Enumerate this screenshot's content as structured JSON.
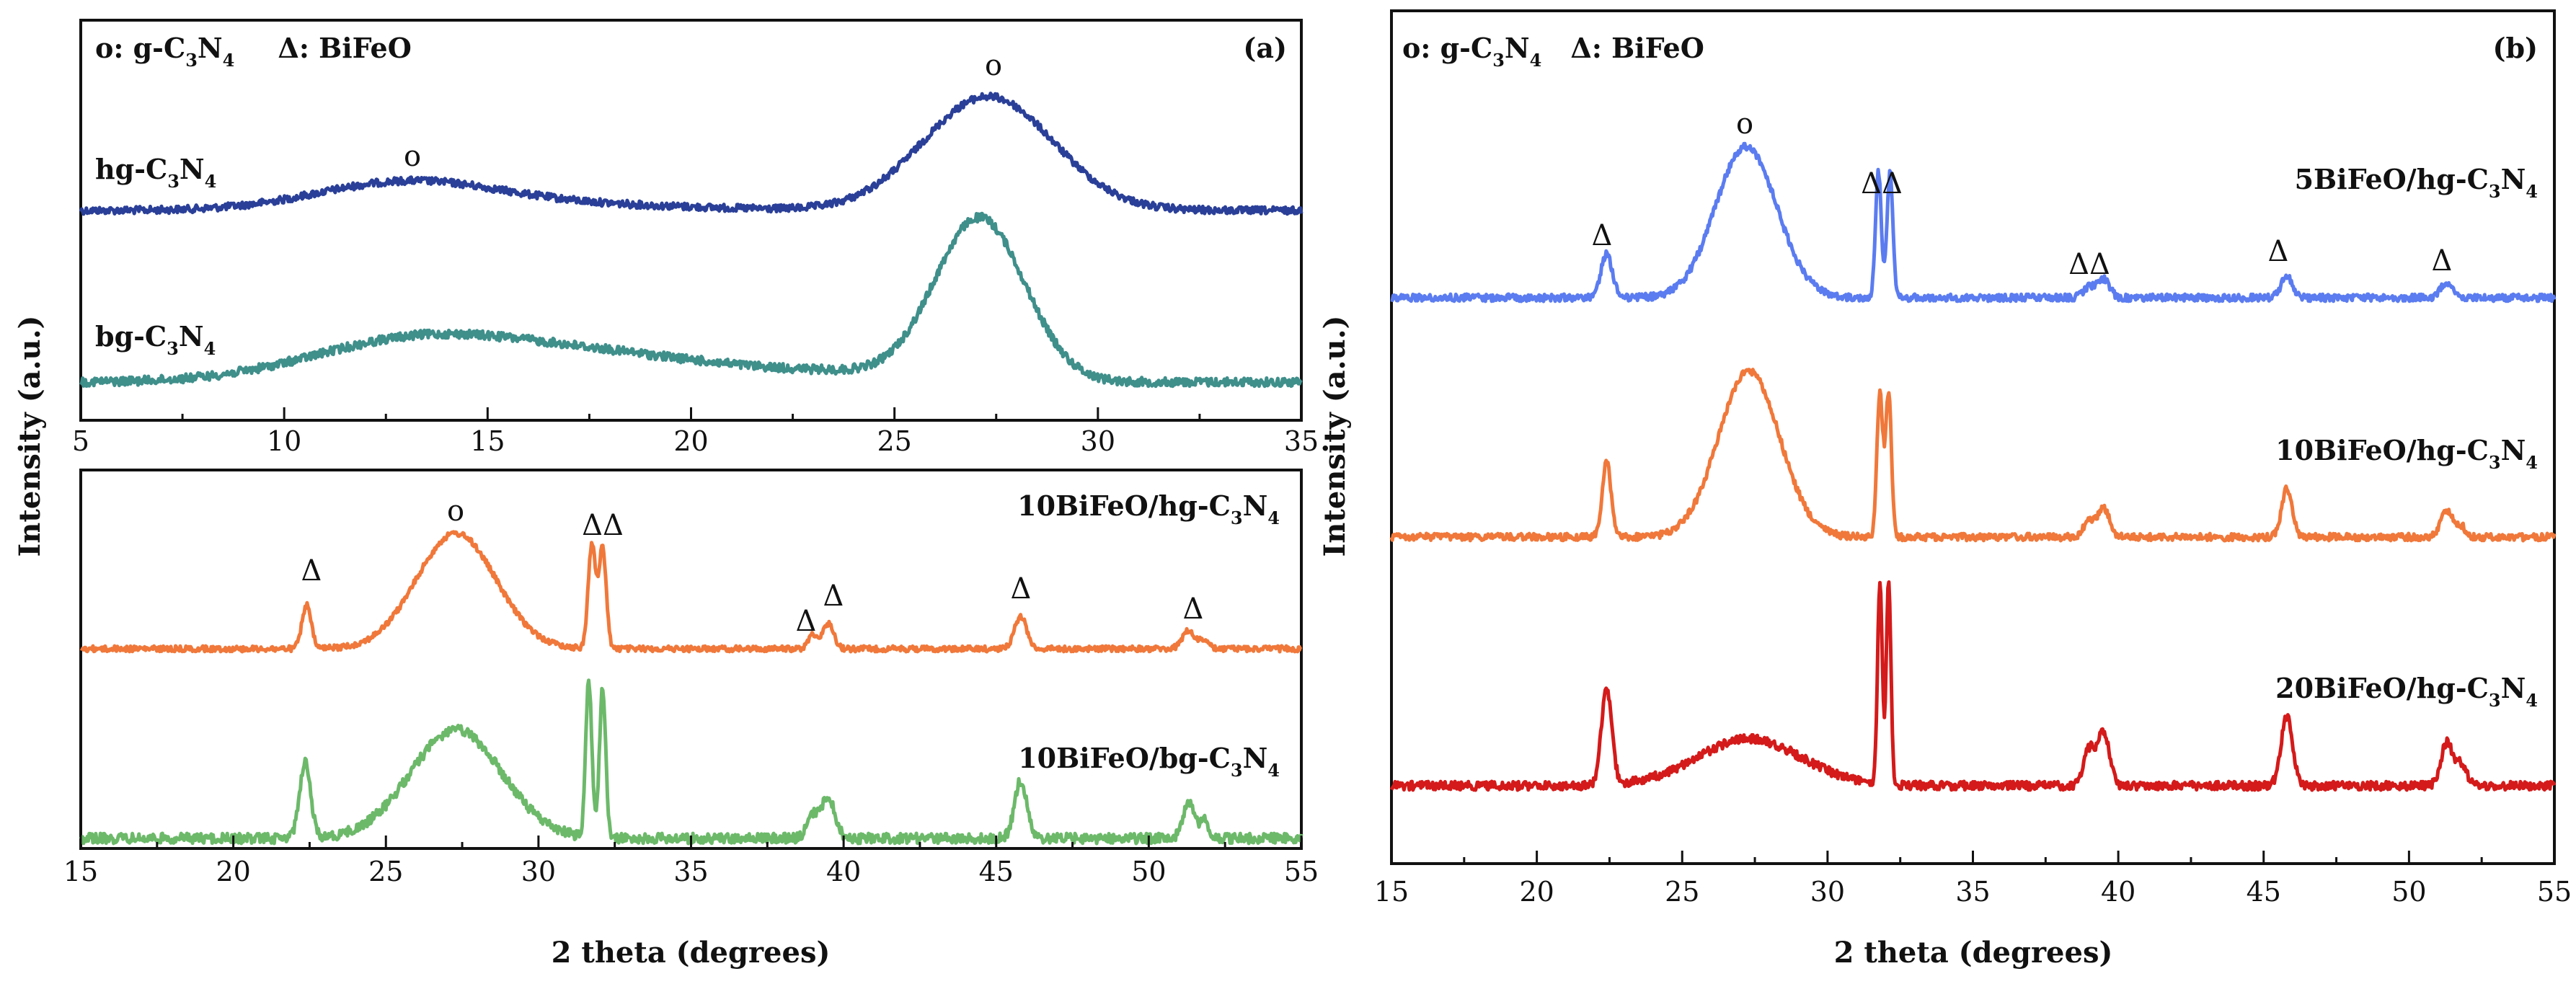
{
  "colors": {
    "navy": "#2a3f98",
    "teal": "#3f8f8b",
    "orange": "#f0783a",
    "green": "#6cb96a",
    "blue": "#5b7cf0",
    "red": "#d41a1a"
  },
  "chart_data": [
    {
      "id": "a-top",
      "panel": "(a)",
      "type": "line",
      "legend_text": {
        "o_part": "o: g-C",
        "c_sub": "3",
        "n_part": "N",
        "n_sub": "4",
        "delta_part": "Δ: BiFeO"
      },
      "xlim": [
        5,
        35
      ],
      "xticks": [
        5,
        10,
        15,
        20,
        25,
        30,
        35
      ],
      "ylabel": "Intensity (a.u.)",
      "series": [
        {
          "name": "hg-C3N4",
          "label": {
            "main": "hg-C",
            "s1": "3",
            "mid": "N",
            "s2": "4"
          },
          "color": "#2a3f98",
          "peaks": [
            {
              "x": 13.0,
              "marker": "o"
            },
            {
              "x": 27.3,
              "marker": "o"
            }
          ]
        },
        {
          "name": "bg-C3N4",
          "label": {
            "main": "bg-C",
            "s1": "3",
            "mid": "N",
            "s2": "4"
          },
          "color": "#3f8f8b",
          "peaks": [
            {
              "x": 13.0
            },
            {
              "x": 27.1
            }
          ]
        }
      ]
    },
    {
      "id": "a-bottom",
      "panel": "(a)",
      "type": "line",
      "xlim": [
        15,
        55
      ],
      "xticks": [
        15,
        20,
        25,
        30,
        35,
        40,
        45,
        50,
        55
      ],
      "xlabel": "2 theta (degrees)",
      "series": [
        {
          "name": "10BiFeO/hg-C3N4",
          "label": {
            "main": "10BiFeO/hg-C",
            "s1": "3",
            "mid": "N",
            "s2": "4"
          },
          "color": "#f0783a",
          "peaks": [
            {
              "x": 22.4,
              "marker": "Δ"
            },
            {
              "x": 27.3,
              "marker": "o"
            },
            {
              "x": 31.8,
              "marker": "ΔΔ"
            },
            {
              "x": 39.0,
              "marker": "Δ"
            },
            {
              "x": 39.5,
              "marker": "Δ"
            },
            {
              "x": 45.8,
              "marker": "Δ"
            },
            {
              "x": 51.3,
              "marker": "Δ"
            }
          ]
        },
        {
          "name": "10BiFeO/bg-C3N4",
          "label": {
            "main": "10BiFeO/bg-C",
            "s1": "3",
            "mid": "N",
            "s2": "4"
          },
          "color": "#6cb96a",
          "peaks": [
            {
              "x": 22.4
            },
            {
              "x": 27.3
            },
            {
              "x": 31.7
            },
            {
              "x": 32.1
            },
            {
              "x": 39.5
            },
            {
              "x": 45.8
            },
            {
              "x": 51.3
            }
          ]
        }
      ]
    },
    {
      "id": "b",
      "panel": "(b)",
      "type": "line",
      "legend_text": {
        "o_part": "o: g-C",
        "c_sub": "3",
        "n_part": "N",
        "n_sub": "4",
        "delta_part": "Δ: BiFeO"
      },
      "xlim": [
        15,
        55
      ],
      "xticks": [
        15,
        20,
        25,
        30,
        35,
        40,
        45,
        50,
        55
      ],
      "xlabel": "2 theta (degrees)",
      "ylabel": "Intensity (a.u.)",
      "series": [
        {
          "name": "5BiFeO/hg-C3N4",
          "label": {
            "main": "5BiFeO/hg-C",
            "s1": "3",
            "mid": "N",
            "s2": "4"
          },
          "color": "#5b7cf0",
          "peaks": [
            {
              "x": 22.4,
              "marker": "Δ"
            },
            {
              "x": 27.3,
              "marker": "o"
            },
            {
              "x": 31.8,
              "marker": "ΔΔ"
            },
            {
              "x": 39.2,
              "marker": "ΔΔ"
            },
            {
              "x": 45.8,
              "marker": "Δ"
            },
            {
              "x": 51.3,
              "marker": "Δ"
            }
          ]
        },
        {
          "name": "10BiFeO/hg-C3N4",
          "label": {
            "main": "10BiFeO/hg-C",
            "s1": "3",
            "mid": "N",
            "s2": "4"
          },
          "color": "#f0783a",
          "peaks": [
            {
              "x": 22.4
            },
            {
              "x": 27.3
            },
            {
              "x": 31.8
            },
            {
              "x": 32.1
            },
            {
              "x": 39.5
            },
            {
              "x": 45.8
            },
            {
              "x": 51.3
            }
          ]
        },
        {
          "name": "20BiFeO/hg-C3N4",
          "label": {
            "main": "20BiFeO/hg-C",
            "s1": "3",
            "mid": "N",
            "s2": "4"
          },
          "color": "#d41a1a",
          "peaks": [
            {
              "x": 22.4
            },
            {
              "x": 27.3
            },
            {
              "x": 31.8
            },
            {
              "x": 32.1
            },
            {
              "x": 39.5
            },
            {
              "x": 45.8
            },
            {
              "x": 51.3
            }
          ]
        }
      ]
    }
  ]
}
